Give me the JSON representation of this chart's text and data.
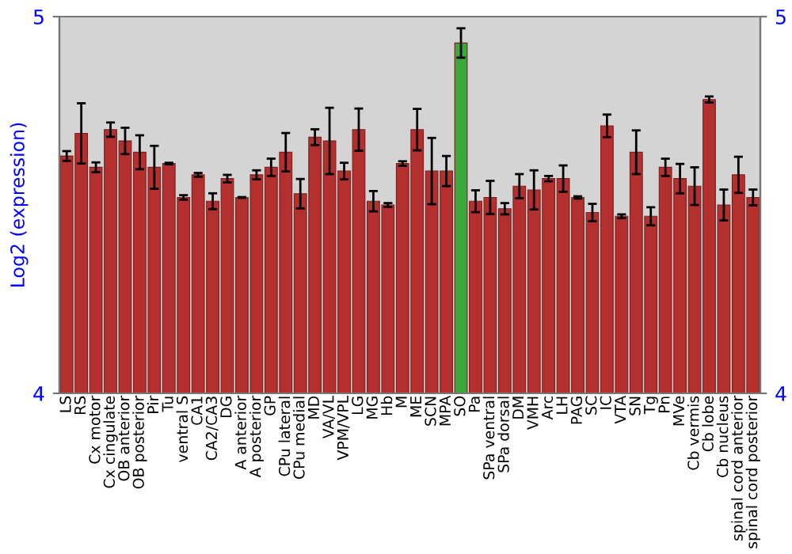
{
  "chart_data": {
    "type": "bar",
    "ylabel": "Log2 (expression)",
    "categories": [
      "LS",
      "RS",
      "Cx motor",
      "Cx cingulate",
      "OB anterior",
      "OB posterior",
      "Pir",
      "Tu",
      "ventral S",
      "CA1",
      "CA2/CA3",
      "DG",
      "A anterior",
      "A posterior",
      "GP",
      "CPu lateral",
      "CPu medial",
      "MD",
      "VA/VL",
      "VPM/VPL",
      "LG",
      "MG",
      "Hb",
      "M",
      "ME",
      "SCN",
      "MPA",
      "SO",
      "Pa",
      "SPa ventral",
      "SPa dorsal",
      "DM",
      "VMH",
      "Arc",
      "LH",
      "PAG",
      "SC",
      "IC",
      "VTA",
      "SN",
      "Tg",
      "Pn",
      "MVe",
      "Cb vermis",
      "Cb lobe",
      "Cb nucleus",
      "spinal cord anterior",
      "spinal cord posterior"
    ],
    "values": [
      4.63,
      4.69,
      4.6,
      4.7,
      4.67,
      4.64,
      4.6,
      4.61,
      4.52,
      4.58,
      4.51,
      4.57,
      4.52,
      4.58,
      4.6,
      4.64,
      4.53,
      4.68,
      4.67,
      4.59,
      4.7,
      4.51,
      4.5,
      4.61,
      4.7,
      4.59,
      4.59,
      4.93,
      4.51,
      4.52,
      4.49,
      4.55,
      4.54,
      4.57,
      4.57,
      4.52,
      4.48,
      4.71,
      4.47,
      4.64,
      4.47,
      4.6,
      4.57,
      4.55,
      4.78,
      4.5,
      4.58,
      4.52
    ],
    "errors": [
      0.013,
      0.08,
      0.013,
      0.019,
      0.035,
      0.045,
      0.057,
      0.002,
      0.006,
      0.005,
      0.021,
      0.01,
      0.001,
      0.012,
      0.023,
      0.051,
      0.039,
      0.021,
      0.088,
      0.022,
      0.056,
      0.027,
      0.005,
      0.006,
      0.055,
      0.088,
      0.04,
      0.039,
      0.029,
      0.044,
      0.015,
      0.032,
      0.052,
      0.007,
      0.035,
      0.003,
      0.023,
      0.03,
      0.005,
      0.058,
      0.024,
      0.023,
      0.039,
      0.05,
      0.008,
      0.041,
      0.048,
      0.021
    ],
    "colors": [
      "#b3302f",
      "#b3302f",
      "#b3302f",
      "#b3302f",
      "#b3302f",
      "#b3302f",
      "#b3302f",
      "#b3302f",
      "#b3302f",
      "#b3302f",
      "#b3302f",
      "#b3302f",
      "#b3302f",
      "#b3302f",
      "#b3302f",
      "#b3302f",
      "#b3302f",
      "#b3302f",
      "#b3302f",
      "#b3302f",
      "#b3302f",
      "#b3302f",
      "#b3302f",
      "#b3302f",
      "#b3302f",
      "#b3302f",
      "#b3302f",
      "#3aa83a",
      "#b3302f",
      "#b3302f",
      "#b3302f",
      "#b3302f",
      "#b3302f",
      "#b3302f",
      "#b3302f",
      "#b3302f",
      "#b3302f",
      "#b3302f",
      "#b3302f",
      "#b3302f",
      "#b3302f",
      "#b3302f",
      "#b3302f",
      "#b3302f",
      "#b3302f",
      "#b3302f",
      "#b3302f",
      "#b3302f"
    ],
    "ylim": [
      4,
      5
    ],
    "yticks": [
      4,
      5
    ],
    "y2lim": [
      4,
      5
    ],
    "y2ticks": [
      4,
      5
    ],
    "grid": false,
    "legend": false
  }
}
